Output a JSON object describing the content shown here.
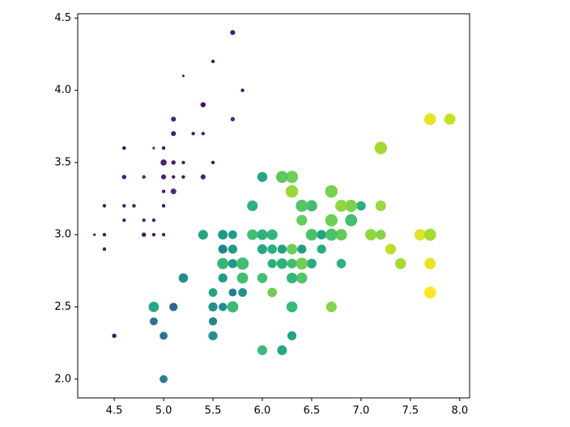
{
  "chart_data": {
    "type": "scatter",
    "x": [
      5.1,
      4.9,
      4.7,
      4.6,
      5.0,
      5.4,
      4.6,
      5.0,
      4.4,
      4.9,
      5.4,
      4.8,
      4.8,
      4.3,
      5.8,
      5.7,
      5.4,
      5.1,
      5.7,
      5.1,
      5.4,
      5.1,
      4.6,
      5.1,
      4.8,
      5.0,
      5.0,
      5.2,
      5.2,
      4.7,
      4.8,
      5.4,
      5.2,
      5.5,
      4.9,
      5.0,
      5.5,
      4.9,
      4.4,
      5.1,
      5.0,
      4.5,
      4.4,
      5.0,
      5.1,
      4.8,
      5.1,
      4.6,
      5.3,
      5.0,
      7.0,
      6.4,
      6.9,
      5.5,
      6.5,
      5.7,
      6.3,
      4.9,
      6.6,
      5.2,
      5.0,
      5.9,
      6.0,
      6.1,
      5.6,
      6.7,
      5.6,
      5.8,
      6.2,
      5.6,
      5.9,
      6.1,
      6.3,
      6.1,
      6.4,
      6.6,
      6.8,
      6.7,
      6.0,
      5.7,
      5.5,
      5.5,
      5.8,
      6.0,
      5.4,
      6.0,
      6.7,
      6.3,
      5.6,
      5.5,
      5.5,
      6.1,
      5.8,
      5.0,
      5.6,
      5.7,
      5.7,
      6.2,
      5.1,
      5.7,
      6.3,
      5.8,
      7.1,
      6.3,
      6.5,
      7.6,
      4.9,
      7.3,
      6.7,
      7.2,
      6.5,
      6.4,
      6.8,
      5.7,
      5.8,
      6.4,
      6.5,
      7.7,
      7.7,
      6.0,
      6.9,
      5.6,
      7.7,
      6.3,
      6.7,
      7.2,
      6.2,
      6.1,
      6.4,
      7.2,
      7.4,
      7.9,
      6.4,
      6.3,
      6.1,
      7.7,
      6.3,
      6.4,
      6.0,
      6.9,
      6.7,
      6.9,
      5.8,
      6.8,
      6.7,
      6.7,
      6.3,
      6.5,
      6.2,
      5.9
    ],
    "y": [
      3.5,
      3.0,
      3.2,
      3.1,
      3.6,
      3.9,
      3.4,
      3.4,
      2.9,
      3.1,
      3.7,
      3.4,
      3.0,
      3.0,
      4.0,
      4.4,
      3.9,
      3.5,
      3.8,
      3.8,
      3.4,
      3.7,
      3.6,
      3.3,
      3.4,
      3.0,
      3.4,
      3.5,
      3.4,
      3.2,
      3.1,
      3.4,
      4.1,
      4.2,
      3.1,
      3.2,
      3.5,
      3.6,
      3.0,
      3.4,
      3.5,
      2.3,
      3.2,
      3.5,
      3.8,
      3.0,
      3.8,
      3.2,
      3.7,
      3.3,
      3.2,
      3.2,
      3.1,
      2.3,
      2.8,
      2.8,
      3.3,
      2.4,
      2.9,
      2.7,
      2.0,
      3.0,
      2.2,
      2.9,
      2.9,
      3.1,
      3.0,
      2.7,
      2.2,
      2.5,
      3.2,
      2.8,
      2.5,
      2.8,
      2.9,
      3.0,
      2.8,
      3.0,
      2.9,
      2.6,
      2.4,
      2.4,
      2.7,
      2.7,
      3.0,
      3.4,
      3.1,
      2.3,
      3.0,
      2.5,
      2.6,
      3.0,
      2.6,
      2.3,
      2.7,
      3.0,
      2.9,
      2.9,
      2.5,
      2.8,
      3.3,
      2.7,
      3.0,
      2.9,
      3.0,
      3.0,
      2.5,
      2.9,
      2.5,
      3.6,
      3.2,
      2.7,
      3.0,
      2.5,
      2.8,
      3.2,
      3.0,
      3.8,
      2.6,
      2.2,
      3.2,
      2.8,
      2.8,
      2.7,
      3.3,
      3.2,
      2.8,
      3.0,
      2.8,
      3.0,
      2.8,
      3.8,
      2.8,
      2.8,
      2.6,
      3.0,
      3.4,
      3.1,
      3.0,
      3.1,
      3.1,
      3.1,
      2.7,
      3.2,
      3.3,
      3.0,
      2.5,
      3.0,
      3.4,
      3.0
    ],
    "color_values": [
      1.4,
      1.4,
      1.3,
      1.5,
      1.4,
      1.7,
      1.4,
      1.5,
      1.4,
      1.5,
      1.5,
      1.6,
      1.4,
      1.1,
      1.2,
      1.5,
      1.3,
      1.4,
      1.7,
      1.5,
      1.7,
      1.5,
      1.0,
      1.7,
      1.9,
      1.6,
      1.6,
      1.5,
      1.4,
      1.6,
      1.6,
      1.5,
      1.5,
      1.4,
      1.5,
      1.2,
      1.3,
      1.4,
      1.3,
      1.5,
      1.3,
      1.3,
      1.3,
      1.6,
      1.9,
      1.4,
      1.6,
      1.4,
      1.5,
      1.4,
      4.7,
      4.5,
      4.9,
      4.0,
      4.6,
      4.5,
      4.7,
      3.3,
      4.6,
      3.9,
      3.5,
      4.2,
      4.0,
      4.7,
      3.6,
      4.4,
      4.5,
      4.1,
      4.5,
      3.9,
      4.8,
      4.0,
      4.9,
      4.7,
      4.3,
      4.4,
      4.8,
      5.0,
      4.5,
      3.5,
      3.8,
      3.7,
      3.9,
      5.1,
      4.5,
      4.5,
      4.7,
      4.4,
      4.1,
      4.0,
      4.4,
      4.6,
      4.0,
      3.3,
      4.2,
      4.2,
      4.2,
      4.3,
      3.0,
      4.1,
      6.0,
      5.1,
      5.9,
      5.6,
      5.8,
      6.6,
      4.5,
      6.3,
      5.8,
      6.1,
      5.1,
      5.3,
      5.5,
      5.0,
      5.1,
      5.3,
      5.5,
      6.7,
      6.9,
      5.0,
      5.7,
      4.9,
      6.7,
      4.9,
      5.7,
      6.0,
      4.8,
      4.9,
      5.6,
      5.8,
      6.1,
      6.4,
      5.6,
      5.1,
      5.6,
      6.1,
      5.6,
      5.5,
      4.8,
      5.4,
      5.6,
      5.1,
      5.1,
      5.9,
      5.7,
      5.2,
      5.0,
      5.2,
      5.4,
      5.1
    ],
    "sizes": [
      0.2,
      0.2,
      0.2,
      0.2,
      0.2,
      0.4,
      0.3,
      0.2,
      0.2,
      0.1,
      0.2,
      0.2,
      0.1,
      0.1,
      0.2,
      0.4,
      0.4,
      0.3,
      0.3,
      0.3,
      0.2,
      0.4,
      0.2,
      0.5,
      0.2,
      0.2,
      0.4,
      0.2,
      0.2,
      0.2,
      0.2,
      0.4,
      0.1,
      0.2,
      0.2,
      0.2,
      0.2,
      0.1,
      0.2,
      0.2,
      0.3,
      0.3,
      0.2,
      0.6,
      0.4,
      0.3,
      0.2,
      0.2,
      0.2,
      0.2,
      1.4,
      1.5,
      1.5,
      1.3,
      1.5,
      1.3,
      1.6,
      1.0,
      1.3,
      1.4,
      1.0,
      1.5,
      1.0,
      1.4,
      1.3,
      1.4,
      1.5,
      1.0,
      1.5,
      1.1,
      1.8,
      1.3,
      1.5,
      1.2,
      1.3,
      1.4,
      1.4,
      1.7,
      1.5,
      1.0,
      1.1,
      1.0,
      1.2,
      1.6,
      1.5,
      1.6,
      1.5,
      1.3,
      1.3,
      1.3,
      1.2,
      1.4,
      1.2,
      1.0,
      1.3,
      1.2,
      1.3,
      1.3,
      1.1,
      1.3,
      2.5,
      1.9,
      2.1,
      1.8,
      2.2,
      2.1,
      1.7,
      1.8,
      1.8,
      2.5,
      2.0,
      1.9,
      2.1,
      2.0,
      2.4,
      2.3,
      1.8,
      2.2,
      2.3,
      1.5,
      2.3,
      2.0,
      2.0,
      1.8,
      2.1,
      1.8,
      1.8,
      1.8,
      2.1,
      1.6,
      1.9,
      2.0,
      2.2,
      1.5,
      1.4,
      2.3,
      2.4,
      1.8,
      1.8,
      2.1,
      2.4,
      2.3,
      1.9,
      2.3,
      2.5,
      2.3,
      1.9,
      2.0,
      2.3,
      1.8
    ],
    "colormap": [
      "#440154",
      "#482878",
      "#3e4989",
      "#31688e",
      "#26828e",
      "#1f9e89",
      "#35b779",
      "#6ece58",
      "#b5de2b",
      "#fde725"
    ],
    "xlim": [
      4.13,
      8.1
    ],
    "ylim": [
      1.87,
      4.53
    ],
    "xticks": [
      4.5,
      {
        "value": 5,
        "label": "5.0"
      },
      5.5,
      {
        "value": 6,
        "label": "6.0"
      },
      6.5,
      {
        "value": 7,
        "label": "7.0"
      },
      7.5,
      {
        "value": 8,
        "label": "8.0"
      }
    ],
    "yticks": [
      {
        "value": 2,
        "label": "2.0"
      },
      2.5,
      {
        "value": 3,
        "label": "3.0"
      },
      3.5,
      {
        "value": 4,
        "label": "4.0"
      },
      4.5
    ]
  }
}
